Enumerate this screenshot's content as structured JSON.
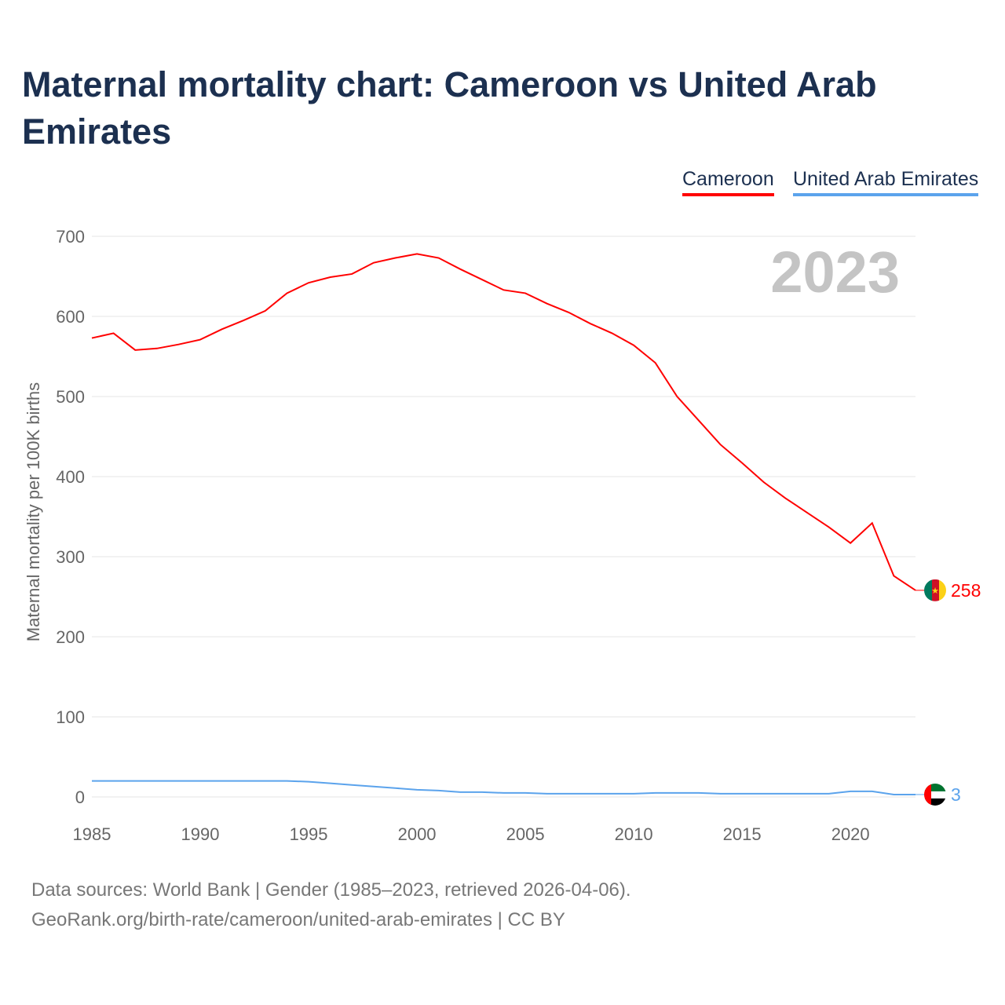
{
  "title": "Maternal mortality chart: Cameroon vs United Arab Emirates",
  "footer": {
    "line1": "Data sources: World Bank | Gender (1985–2023, retrieved 2026-04-06).",
    "line2": "GeoRank.org/birth-rate/cameroon/united-arab-emirates | CC BY"
  },
  "chart_data": {
    "type": "line",
    "title": "Maternal mortality chart: Cameroon vs United Arab Emirates",
    "ylabel": "Maternal mortality per 100K births",
    "xlabel": "",
    "year_label": "2023",
    "ylim": [
      0,
      700
    ],
    "xlim": [
      1985,
      2023
    ],
    "yticks": [
      0,
      100,
      200,
      300,
      400,
      500,
      600,
      700
    ],
    "xticks": [
      1985,
      1990,
      1995,
      2000,
      2005,
      2010,
      2015,
      2020
    ],
    "grid": true,
    "legend_position": "top-right",
    "x": [
      1985,
      1986,
      1987,
      1988,
      1989,
      1990,
      1991,
      1992,
      1993,
      1994,
      1995,
      1996,
      1997,
      1998,
      1999,
      2000,
      2001,
      2002,
      2003,
      2004,
      2005,
      2006,
      2007,
      2008,
      2009,
      2010,
      2011,
      2012,
      2013,
      2014,
      2015,
      2016,
      2017,
      2018,
      2019,
      2020,
      2021,
      2022,
      2023
    ],
    "series": [
      {
        "name": "Cameroon",
        "color": "#ff0000",
        "end_label": "258",
        "values": [
          573,
          579,
          558,
          560,
          565,
          571,
          584,
          595,
          607,
          629,
          642,
          649,
          653,
          667,
          673,
          678,
          673,
          659,
          646,
          633,
          629,
          616,
          605,
          591,
          579,
          564,
          542,
          500,
          470,
          440,
          417,
          393,
          373,
          355,
          337,
          317,
          342,
          276,
          258
        ]
      },
      {
        "name": "United Arab Emirates",
        "color": "#5ba3ec",
        "end_label": "3",
        "values": [
          20,
          20,
          20,
          20,
          20,
          20,
          20,
          20,
          20,
          20,
          19,
          17,
          15,
          13,
          11,
          9,
          8,
          6,
          6,
          5,
          5,
          4,
          4,
          4,
          4,
          4,
          5,
          5,
          5,
          4,
          4,
          4,
          4,
          4,
          4,
          7,
          7,
          3,
          3
        ]
      }
    ]
  }
}
